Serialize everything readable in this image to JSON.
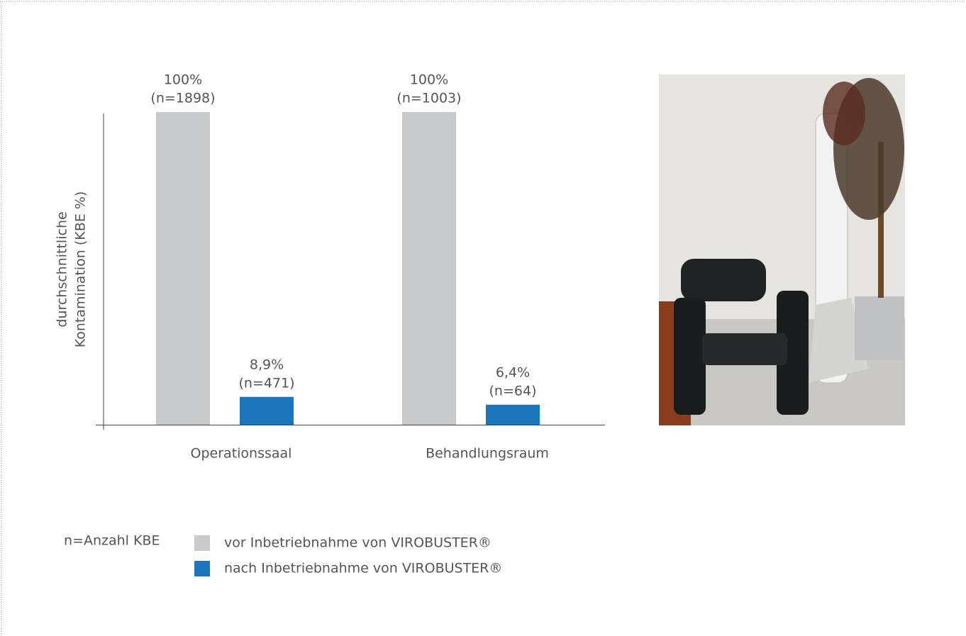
{
  "chart_data": {
    "type": "bar",
    "ylabel": [
      "durchschnittliche",
      "Kontamination (KBE %)"
    ],
    "categories": [
      "Operationssaal",
      "Behandlungsraum"
    ],
    "ylim": [
      0,
      100
    ],
    "note": "n=Anzahl KBE",
    "series": [
      {
        "name": "vor Inbetriebnahme von VIROBUSTER®",
        "color": "#c8c9cb",
        "values": [
          100,
          100
        ],
        "value_labels": [
          "100%",
          "100%"
        ],
        "n_labels": [
          "(n=1898)",
          "(n=1003)"
        ]
      },
      {
        "name": "nach Inbetriebnahme von VIROBUSTER®",
        "color": "#1a75bb",
        "values": [
          8.9,
          6.4
        ],
        "value_labels": [
          "8,9%",
          "6,4%"
        ],
        "n_labels": [
          "(n=471)",
          "(n=64)"
        ]
      }
    ]
  }
}
